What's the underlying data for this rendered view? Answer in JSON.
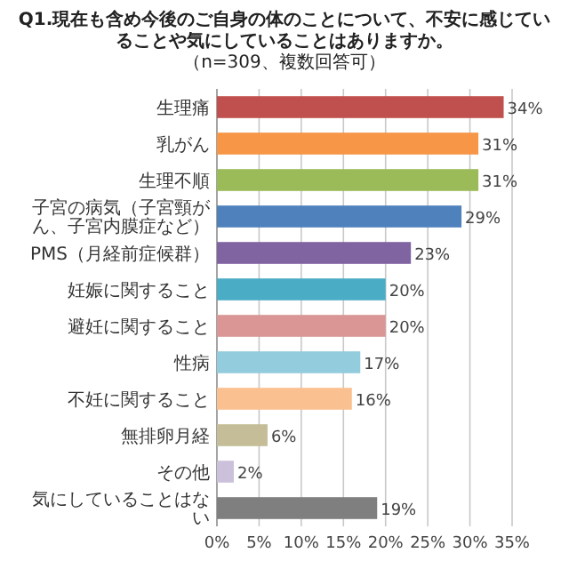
{
  "chart_data": {
    "type": "bar",
    "orientation": "horizontal",
    "title": "Q1.現在も含め今後のご自身の体のことについて、不安に感じていることや気にしていることはありますか。",
    "subtitle": "（n=309、複数回答可）",
    "categories": [
      "生理痛",
      "乳がん",
      "生理不順",
      "子宮の病気（子宮頸がん、子宮内膜症など）",
      "PMS（月経前症候群）",
      "妊娠に関すること",
      "避妊に関すること",
      "性病",
      "不妊に関すること",
      "無排卵月経",
      "その他",
      "気にしていることはない"
    ],
    "values": [
      34,
      31,
      31,
      29,
      23,
      20,
      20,
      17,
      16,
      6,
      2,
      19
    ],
    "colors": [
      "#c0504d",
      "#f79646",
      "#9bbb59",
      "#4f81bd",
      "#8064a2",
      "#4bacc6",
      "#d99694",
      "#93cddd",
      "#fac090",
      "#c4bd97",
      "#ccc1da",
      "#7f7f7f"
    ],
    "value_labels": [
      "34%",
      "31%",
      "31%",
      "29%",
      "23%",
      "20%",
      "20%",
      "17%",
      "16%",
      "6%",
      "2%",
      "19%"
    ],
    "xlim": [
      0,
      35
    ],
    "xticks": [
      {
        "value": 0,
        "label": "0%"
      },
      {
        "value": 5,
        "label": "5%"
      },
      {
        "value": 10,
        "label": "10%"
      },
      {
        "value": 15,
        "label": "15%"
      },
      {
        "value": 20,
        "label": "20%"
      },
      {
        "value": 25,
        "label": "25%"
      },
      {
        "value": 30,
        "label": "30%"
      },
      {
        "value": 35,
        "label": "35%"
      }
    ],
    "grid": "x"
  }
}
